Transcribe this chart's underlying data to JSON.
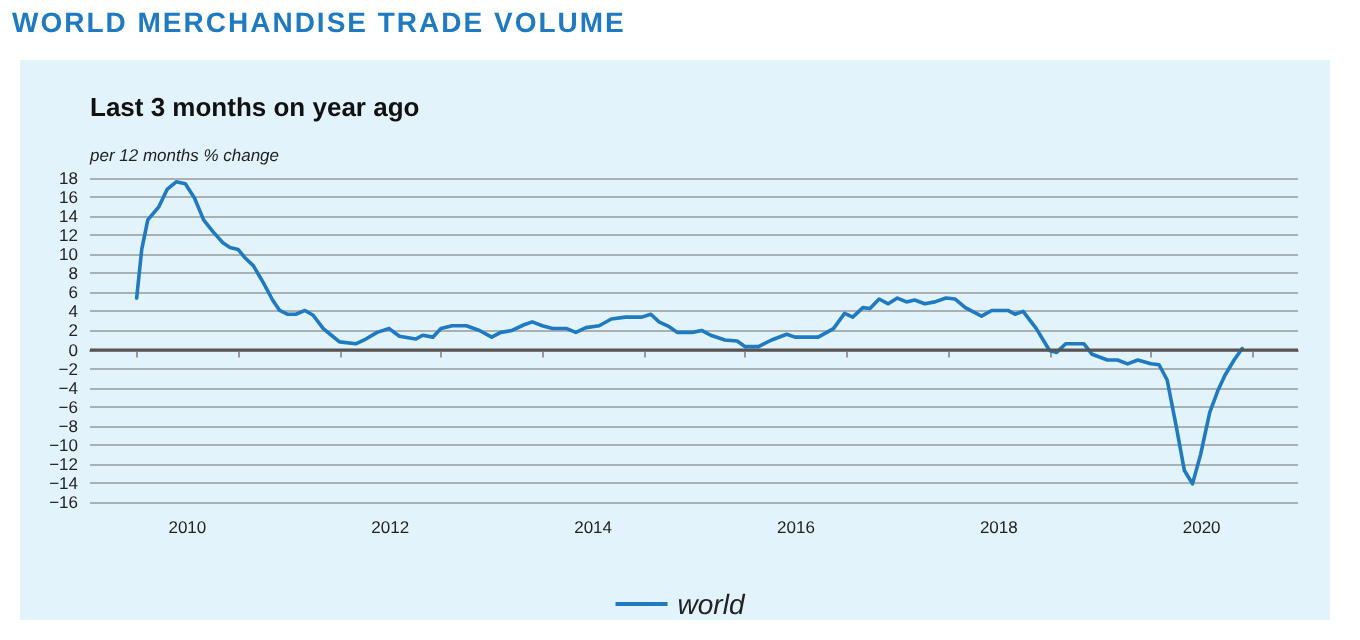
{
  "chart_data": {
    "type": "line",
    "title": "WORLD MERCHANDISE TRADE VOLUME",
    "subtitle": "Last 3 months on year ago",
    "ylabel": "per 12 months % change",
    "series": [
      {
        "name": "world",
        "color": "#1f7ac2",
        "x": [
          2010.0,
          2010.05,
          2010.11,
          2010.22,
          2010.3,
          2010.39,
          2010.48,
          2010.57,
          2010.66,
          2010.75,
          2010.85,
          2010.92,
          2011.0,
          2011.07,
          2011.15,
          2011.25,
          2011.34,
          2011.41,
          2011.49,
          2011.57,
          2011.66,
          2011.74,
          2011.84,
          2011.92,
          2012.0,
          2012.16,
          2012.26,
          2012.37,
          2012.49,
          2012.59,
          2012.75,
          2012.82,
          2012.92,
          2013.0,
          2013.11,
          2013.25,
          2013.38,
          2013.5,
          2013.59,
          2013.7,
          2013.82,
          2013.9,
          2014.0,
          2014.1,
          2014.24,
          2014.33,
          2014.43,
          2014.56,
          2014.68,
          2014.82,
          2014.98,
          2015.07,
          2015.15,
          2015.25,
          2015.33,
          2015.48,
          2015.57,
          2015.66,
          2015.8,
          2015.92,
          2016.0,
          2016.13,
          2016.26,
          2016.41,
          2016.49,
          2016.72,
          2016.87,
          2016.98,
          2017.06,
          2017.16,
          2017.23,
          2017.32,
          2017.41,
          2017.5,
          2017.59,
          2017.67,
          2017.77,
          2017.87,
          2017.98,
          2018.07,
          2018.17,
          2018.33,
          2018.43,
          2018.59,
          2018.66,
          2018.74,
          2018.87,
          2019.0,
          2019.07,
          2019.16,
          2019.28,
          2019.34,
          2019.42,
          2019.57,
          2019.67,
          2019.77,
          2019.87,
          2020.0,
          2020.08,
          2020.16,
          2020.25,
          2020.33,
          2020.41,
          2020.49,
          2020.58,
          2020.66,
          2020.73,
          2020.82,
          2020.9
        ],
        "values": [
          5.4,
          10.5,
          13.6,
          15.0,
          16.8,
          17.6,
          17.4,
          15.9,
          13.6,
          12.4,
          11.2,
          10.7,
          10.5,
          9.6,
          8.8,
          7.0,
          5.2,
          4.1,
          3.7,
          3.7,
          4.1,
          3.6,
          2.2,
          1.5,
          0.8,
          0.6,
          1.1,
          1.8,
          2.2,
          1.4,
          1.1,
          1.5,
          1.3,
          2.2,
          2.5,
          2.5,
          2.0,
          1.3,
          1.8,
          2.0,
          2.6,
          2.9,
          2.5,
          2.2,
          2.2,
          1.8,
          2.3,
          2.5,
          3.2,
          3.4,
          3.4,
          3.7,
          2.9,
          2.4,
          1.8,
          1.8,
          2.0,
          1.5,
          1.0,
          0.9,
          0.3,
          0.3,
          1.0,
          1.6,
          1.3,
          1.3,
          2.2,
          3.8,
          3.4,
          4.4,
          4.3,
          5.3,
          4.8,
          5.4,
          5.0,
          5.2,
          4.8,
          5.0,
          5.4,
          5.3,
          4.4,
          3.5,
          4.1,
          4.1,
          3.7,
          4.0,
          2.2,
          -0.1,
          -0.3,
          0.6,
          0.6,
          0.6,
          -0.5,
          -1.1,
          -1.1,
          -1.5,
          -1.1,
          -1.5,
          -1.6,
          -3.2,
          -8.1,
          -12.7,
          -14.1,
          -11.0,
          -6.6,
          -4.3,
          -2.7,
          -1.1,
          0.1
        ]
      }
    ],
    "xlim": [
      2009.54,
      2021.45
    ],
    "xticks": [
      {
        "value": 2010,
        "label": null
      },
      {
        "value": 2010.5,
        "label": "2010"
      },
      {
        "value": 2011,
        "label": null
      },
      {
        "value": 2012,
        "label": null
      },
      {
        "value": 2012.5,
        "label": "2012"
      },
      {
        "value": 2013,
        "label": null
      },
      {
        "value": 2014,
        "label": null
      },
      {
        "value": 2014.5,
        "label": "2014"
      },
      {
        "value": 2015,
        "label": null
      },
      {
        "value": 2016,
        "label": null
      },
      {
        "value": 2016.5,
        "label": "2016"
      },
      {
        "value": 2017,
        "label": null
      },
      {
        "value": 2018,
        "label": null
      },
      {
        "value": 2018.5,
        "label": "2018"
      },
      {
        "value": 2019,
        "label": null
      },
      {
        "value": 2020,
        "label": null
      },
      {
        "value": 2020.5,
        "label": "2020"
      },
      {
        "value": 2021,
        "label": null
      }
    ],
    "ylim": [
      -16,
      18
    ],
    "yticks": [
      -16,
      -14,
      -12,
      -10,
      -8,
      -6,
      -4,
      -2,
      0,
      2,
      4,
      6,
      8,
      10,
      12,
      14,
      16,
      18
    ],
    "ref_lines": [
      {
        "axis": "y",
        "value": 0,
        "color": "#555555"
      }
    ],
    "grid": "y",
    "legend": "bottom",
    "marker": "none",
    "line_style": "solid"
  }
}
